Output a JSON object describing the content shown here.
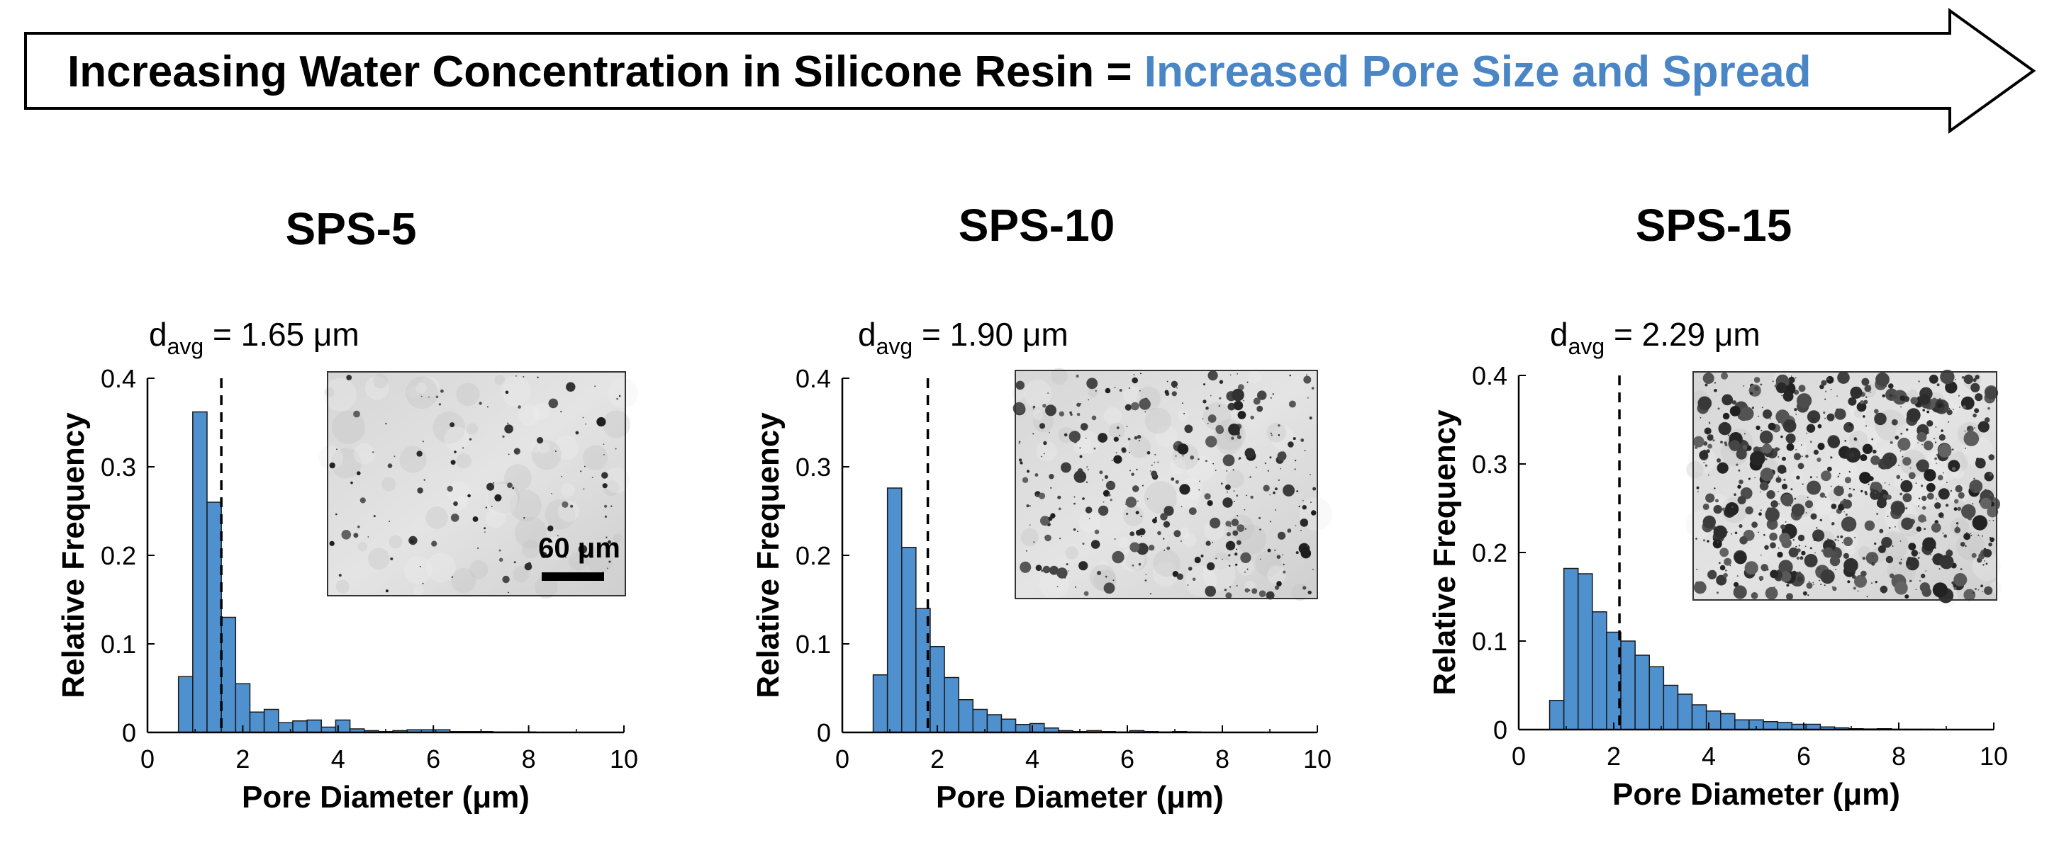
{
  "banner": {
    "text_black": "Increasing Water Concentration in Silicone Resin = ",
    "text_blue": "Increased Pore Size and Spread",
    "accent_color": "#4A86C5"
  },
  "colors": {
    "bar_fill": "#4F90CF",
    "bar_stroke": "#1a1a1a",
    "axis": "#000000"
  },
  "chart_data": [
    {
      "type": "bar",
      "title": "SPS-5",
      "annotation": {
        "symbol": "d",
        "subscript": "avg",
        "value_text": " = 1.65 μm",
        "value": 1.65,
        "unit": "μm"
      },
      "xlabel": "Pore Diameter (μm)",
      "ylabel": "Relative Frequency",
      "xlim": [
        0,
        10
      ],
      "ylim": [
        0,
        0.4
      ],
      "xticks": [
        0,
        2,
        4,
        6,
        8,
        10
      ],
      "yticks": [
        0,
        0.1,
        0.2,
        0.3,
        0.4
      ],
      "xtick_labels": [
        "0",
        "2",
        "4",
        "6",
        "8",
        "10"
      ],
      "ytick_labels": [
        "0",
        "0.1",
        "0.2",
        "0.3",
        "0.4"
      ],
      "bin_width": 0.3,
      "bin_start": 0.65,
      "values": [
        0.063,
        0.362,
        0.26,
        0.13,
        0.055,
        0.023,
        0.026,
        0.011,
        0.013,
        0.014,
        0.006,
        0.014,
        0.004,
        0.002,
        0.001,
        0.002,
        0.003,
        0.003,
        0.003,
        0.001,
        0.001,
        0.001,
        0.0005,
        0.0005,
        0.0005,
        0.0003,
        0.0003,
        0.0003,
        0.0002,
        0.0002,
        0.0002
      ],
      "mean_line_x": 1.55,
      "inset": {
        "type": "sem-micrograph",
        "scale_bar_label": "60 μm",
        "pore_density": "low"
      }
    },
    {
      "type": "bar",
      "title": "SPS-10",
      "annotation": {
        "symbol": "d",
        "subscript": "avg",
        "value_text": " = 1.90 μm",
        "value": 1.9,
        "unit": "μm"
      },
      "xlabel": "Pore Diameter (μm)",
      "ylabel": "Relative Frequency",
      "xlim": [
        0,
        10
      ],
      "ylim": [
        0,
        0.4
      ],
      "xticks": [
        0,
        2,
        4,
        6,
        8,
        10
      ],
      "yticks": [
        0,
        0.1,
        0.2,
        0.3,
        0.4
      ],
      "xtick_labels": [
        "0",
        "2",
        "4",
        "6",
        "8",
        "10"
      ],
      "ytick_labels": [
        "0",
        "0.1",
        "0.2",
        "0.3",
        "0.4"
      ],
      "bin_width": 0.3,
      "bin_start": 0.65,
      "values": [
        0.065,
        0.276,
        0.209,
        0.14,
        0.097,
        0.062,
        0.037,
        0.026,
        0.02,
        0.015,
        0.009,
        0.01,
        0.005,
        0.002,
        0.001,
        0.002,
        0.001,
        0.0005,
        0.002,
        0.001,
        0.0005,
        0.001,
        0.0005,
        0.0003,
        0.0003,
        0.0002,
        0.0002,
        0.0002,
        0.0001,
        0.0001,
        0.0001
      ],
      "mean_line_x": 1.8,
      "inset": {
        "type": "sem-micrograph",
        "pore_density": "medium"
      }
    },
    {
      "type": "bar",
      "title": "SPS-15",
      "annotation": {
        "symbol": "d",
        "subscript": "avg",
        "value_text": " = 2.29 μm",
        "value": 2.29,
        "unit": "μm"
      },
      "xlabel": "Pore Diameter (μm)",
      "ylabel": "Relative Frequency",
      "xlim": [
        0,
        10
      ],
      "ylim": [
        0,
        0.4
      ],
      "xticks": [
        0,
        2,
        4,
        6,
        8,
        10
      ],
      "yticks": [
        0,
        0.1,
        0.2,
        0.3,
        0.4
      ],
      "xtick_labels": [
        "0",
        "2",
        "4",
        "6",
        "8",
        "10"
      ],
      "ytick_labels": [
        "0",
        "0.1",
        "0.2",
        "0.3",
        "0.4"
      ],
      "bin_width": 0.3,
      "bin_start": 0.65,
      "values": [
        0.033,
        0.182,
        0.176,
        0.133,
        0.11,
        0.1,
        0.084,
        0.071,
        0.05,
        0.04,
        0.028,
        0.021,
        0.018,
        0.011,
        0.011,
        0.009,
        0.008,
        0.006,
        0.006,
        0.003,
        0.002,
        0.001,
        0.0007,
        0.001,
        0.0004,
        0.0004,
        0.0004,
        0.0003,
        0.0003,
        0.0002,
        0.0002
      ],
      "mean_line_x": 2.12,
      "inset": {
        "type": "sem-micrograph",
        "pore_density": "high"
      }
    }
  ]
}
